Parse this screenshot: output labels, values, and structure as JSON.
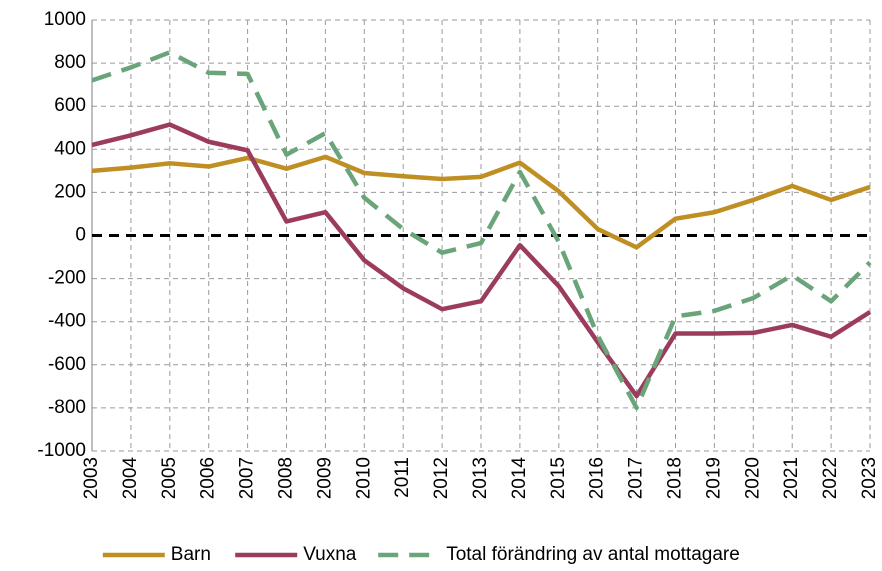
{
  "chart_data": {
    "type": "line",
    "categories": [
      "2003",
      "2004",
      "2005",
      "2006",
      "2007",
      "2008",
      "2009",
      "2010",
      "2011",
      "2012",
      "2013",
      "2014",
      "2015",
      "2016",
      "2017",
      "2018",
      "2019",
      "2020",
      "2021",
      "2022",
      "2023"
    ],
    "series": [
      {
        "name": "Barn",
        "color": "#bf8f24",
        "values": [
          300,
          315,
          335,
          320,
          360,
          310,
          365,
          290,
          275,
          262,
          272,
          338,
          205,
          30,
          -55,
          78,
          108,
          165,
          230,
          165,
          225
        ]
      },
      {
        "name": "Vuxna",
        "color": "#9b3c5e",
        "values": [
          420,
          465,
          515,
          435,
          395,
          65,
          108,
          -115,
          -245,
          -342,
          -305,
          -45,
          -235,
          -495,
          -745,
          -455,
          -455,
          -452,
          -415,
          -470,
          -355
        ]
      },
      {
        "name": "Total förändring av antal mottagare",
        "color": "#6aa57a",
        "dashed": true,
        "values": [
          720,
          780,
          850,
          755,
          750,
          375,
          475,
          175,
          30,
          -80,
          -35,
          295,
          -30,
          -465,
          -800,
          -375,
          -350,
          -290,
          -185,
          -305,
          -125
        ]
      }
    ],
    "ylim": [
      -1000,
      1000
    ],
    "yticks": [
      -1000,
      -800,
      -600,
      -400,
      -200,
      0,
      200,
      400,
      600,
      800,
      1000
    ],
    "grid": true,
    "legend": "bottom"
  }
}
